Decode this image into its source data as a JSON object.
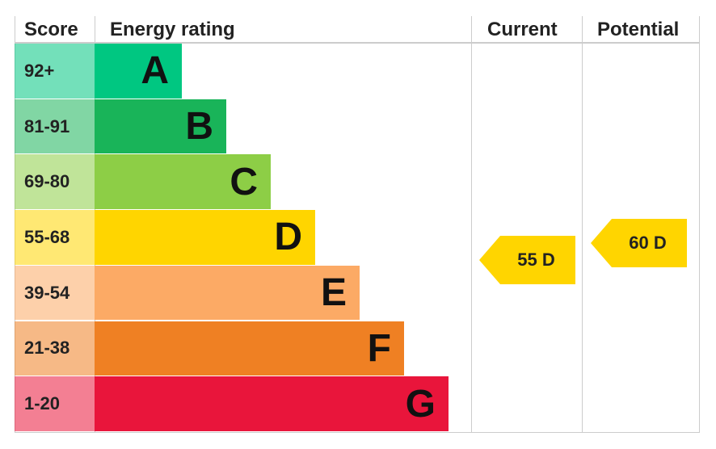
{
  "header": {
    "score": "Score",
    "rating": "Energy rating",
    "current": "Current",
    "potential": "Potential"
  },
  "bands": [
    {
      "score": "92+",
      "letter": "A",
      "color": "#00c781"
    },
    {
      "score": "81-91",
      "letter": "B",
      "color": "#19b459"
    },
    {
      "score": "69-80",
      "letter": "C",
      "color": "#8dce46"
    },
    {
      "score": "55-68",
      "letter": "D",
      "color": "#ffd500"
    },
    {
      "score": "39-54",
      "letter": "E",
      "color": "#fcaa65"
    },
    {
      "score": "21-38",
      "letter": "F",
      "color": "#ef8023"
    },
    {
      "score": "1-20",
      "letter": "G",
      "color": "#e9153b"
    }
  ],
  "current": {
    "label": "55 D",
    "color": "#ffd500"
  },
  "potential": {
    "label": "60 D",
    "color": "#ffd500"
  }
}
